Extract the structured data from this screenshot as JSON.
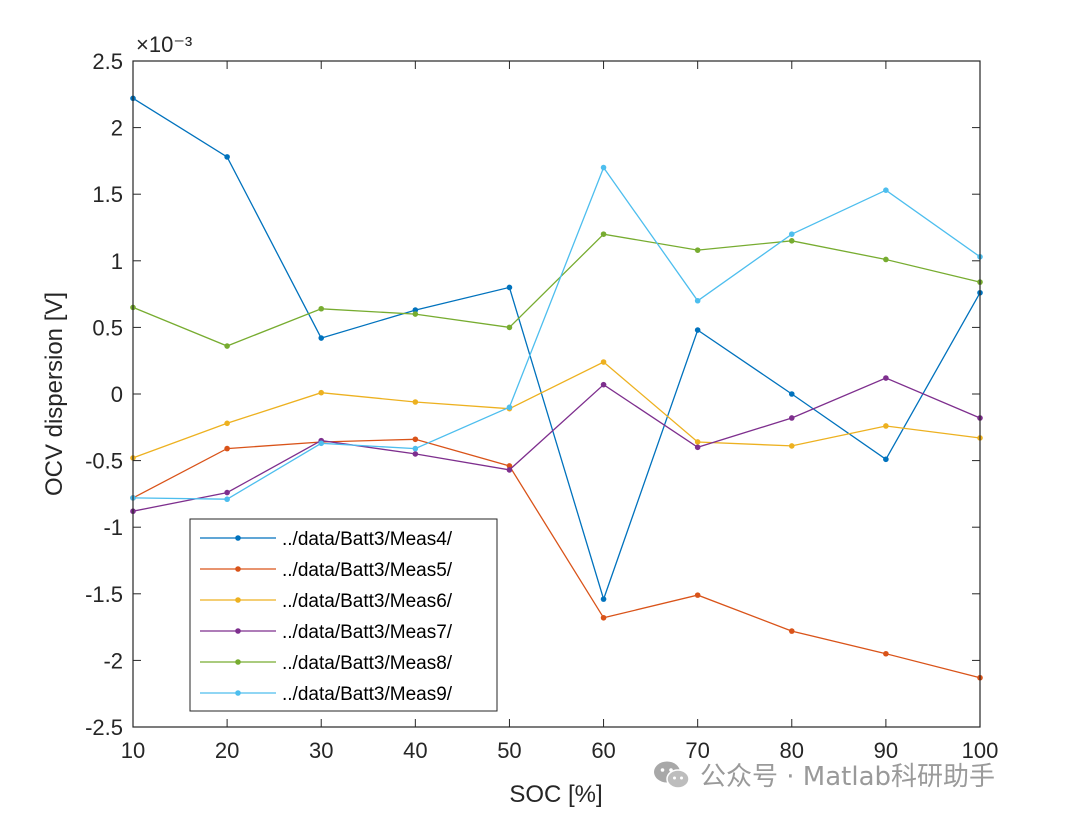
{
  "chart_data": {
    "type": "line",
    "title": "",
    "xlabel": "SOC [%]",
    "ylabel": "OCV dispersion [V]",
    "exponent_label": "×10⁻³",
    "xlim": [
      10,
      100
    ],
    "ylim": [
      -2.5,
      2.5
    ],
    "xticks": [
      10,
      20,
      30,
      40,
      50,
      60,
      70,
      80,
      90,
      100
    ],
    "yticks": [
      2.5,
      2,
      1.5,
      1,
      0.5,
      0,
      -0.5,
      -1,
      -1.5,
      -2,
      -2.5
    ],
    "ytick_labels": [
      "2.5",
      "2",
      "1.5",
      "1",
      "0.5",
      "0",
      "-0.5",
      "-1",
      "-1.5",
      "-2",
      "-2.5"
    ],
    "grid": false,
    "legend_position": "bottom-left",
    "x": [
      10,
      20,
      30,
      40,
      50,
      60,
      70,
      80,
      90,
      100
    ],
    "series": [
      {
        "name": "../data/Batt3/Meas4/",
        "color": "#0072BD",
        "values": [
          2.22,
          1.78,
          0.42,
          0.63,
          0.8,
          -1.54,
          0.48,
          0.0,
          -0.49,
          0.76
        ]
      },
      {
        "name": "../data/Batt3/Meas5/",
        "color": "#D95319",
        "values": [
          -0.78,
          -0.41,
          -0.36,
          -0.34,
          -0.54,
          -1.68,
          -1.51,
          -1.78,
          -1.95,
          -2.13
        ]
      },
      {
        "name": "../data/Batt3/Meas6/",
        "color": "#EDB120",
        "values": [
          -0.48,
          -0.22,
          0.01,
          -0.06,
          -0.11,
          0.24,
          -0.36,
          -0.39,
          -0.24,
          -0.33
        ]
      },
      {
        "name": "../data/Batt3/Meas7/",
        "color": "#7E2F8E",
        "values": [
          -0.88,
          -0.74,
          -0.35,
          -0.45,
          -0.57,
          0.07,
          -0.4,
          -0.18,
          0.12,
          -0.18
        ]
      },
      {
        "name": "../data/Batt3/Meas8/",
        "color": "#77AC30",
        "values": [
          0.65,
          0.36,
          0.64,
          0.6,
          0.5,
          1.2,
          1.08,
          1.15,
          1.01,
          0.84
        ]
      },
      {
        "name": "../data/Batt3/Meas9/",
        "color": "#4DBEEE",
        "values": [
          -0.78,
          -0.79,
          -0.37,
          -0.41,
          -0.1,
          1.7,
          0.7,
          1.2,
          1.53,
          1.03
        ]
      }
    ]
  },
  "watermark": {
    "text": "公众号 · Matlab科研助手",
    "icon": "wechat-icon"
  }
}
